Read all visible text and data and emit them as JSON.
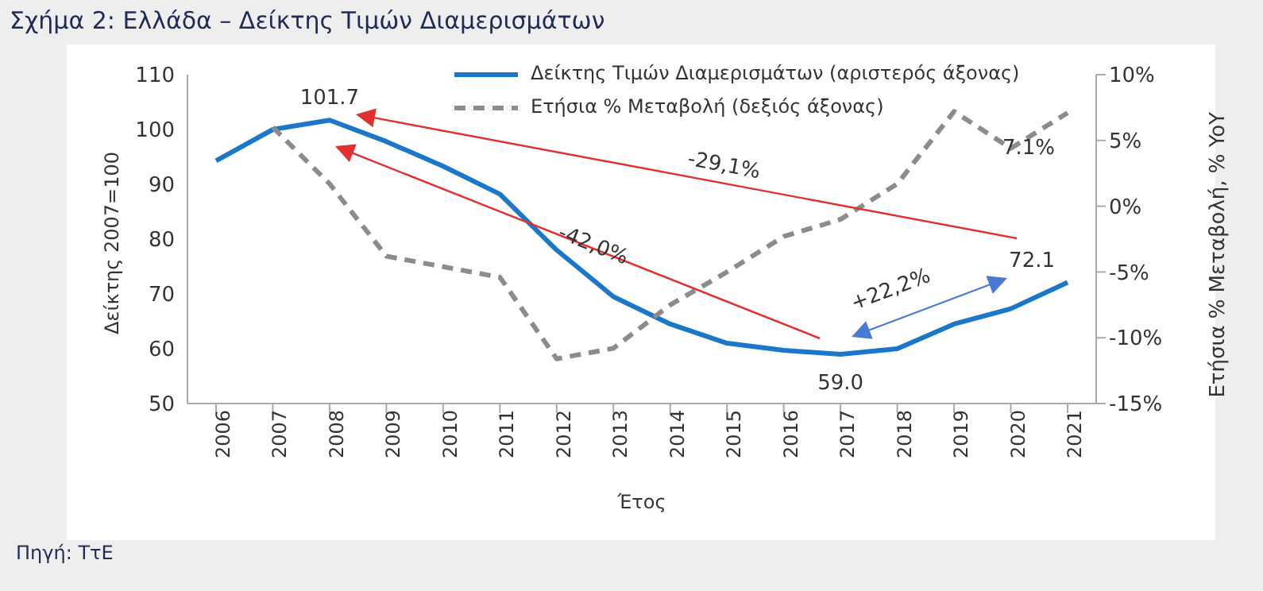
{
  "chart_data": {
    "type": "line",
    "title": "Σχήμα 2: Ελλάδα – Δείκτης Τιμών Διαμερισμάτων",
    "xlabel": "Έτος",
    "ylabel": "Δείκτης 2007=100",
    "y2label": "Ετήσια % Μεταβολή, % YoY",
    "categories": [
      "2006",
      "2007",
      "2008",
      "2009",
      "2010",
      "2011",
      "2012",
      "2013",
      "2014",
      "2015",
      "2016",
      "2017",
      "2018",
      "2019",
      "2020",
      "2021"
    ],
    "series": [
      {
        "name": "Δείκτης Τιμών Διαμερισμάτων (αριστερός άξονας)",
        "color": "#1a77c9",
        "line_style": "solid",
        "values": [
          94.3,
          100,
          101.7,
          97.8,
          93.3,
          88.2,
          78,
          69.5,
          64.5,
          61,
          59.7,
          59.0,
          60,
          64.5,
          67.3,
          72.1
        ],
        "value_labels": [
          null,
          null,
          "101.7",
          null,
          null,
          null,
          null,
          null,
          null,
          null,
          null,
          "59.0",
          null,
          null,
          null,
          "72.1"
        ]
      },
      {
        "name": "Ετήσια % Μεταβολή (δεξιός άξονας)",
        "color": "#8c8c8c",
        "line_style": "dashed",
        "axis": "y2",
        "values": [
          null,
          6.0,
          1.7,
          -3.8,
          -4.6,
          -5.4,
          -11.6,
          -10.8,
          -7.5,
          -5.0,
          -2.3,
          -1.0,
          1.7,
          7.2,
          4.4,
          7.1
        ],
        "value_labels": [
          null,
          null,
          null,
          null,
          null,
          null,
          null,
          null,
          null,
          null,
          null,
          null,
          null,
          null,
          null,
          "7.1%"
        ]
      }
    ],
    "ylim": [
      50,
      110
    ],
    "yticks": [
      50,
      60,
      70,
      80,
      90,
      100,
      110
    ],
    "y2lim": [
      -15,
      10
    ],
    "y2ticks": [
      {
        "value": -15,
        "label": "-15%"
      },
      {
        "value": -10,
        "label": "-10%"
      },
      {
        "value": -5,
        "label": "-5%"
      },
      {
        "value": 0,
        "label": "0%"
      },
      {
        "value": 5,
        "label": "5%"
      },
      {
        "value": 10,
        "label": "10%"
      }
    ],
    "grid": false,
    "legend": "top",
    "marker": "none",
    "annotations": [
      "-29,1%",
      "-42,0%",
      "+22,2%",
      "Πηγή: ΤτΕ"
    ]
  }
}
